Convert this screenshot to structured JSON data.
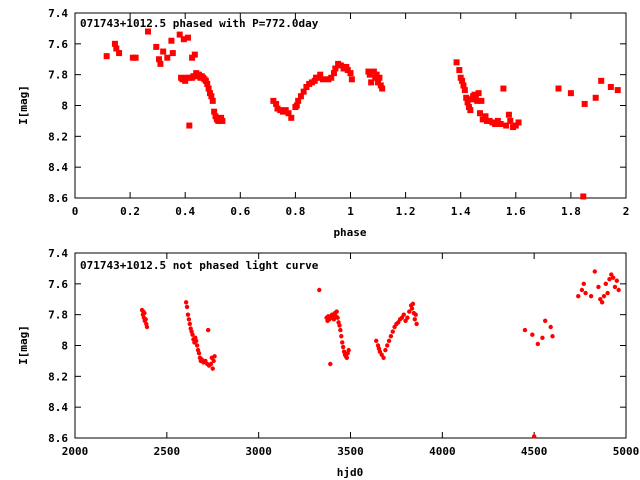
{
  "chart_data": [
    {
      "type": "scatter",
      "title": "071743+1012.5 phased with P=772.0day",
      "xlabel": "phase",
      "ylabel": "I[mag]",
      "xlim": [
        0,
        2
      ],
      "ylim": [
        8.6,
        7.4
      ],
      "y_inverted": true,
      "x_ticks": [
        "0",
        "0.2",
        "0.4",
        "0.6",
        "0.8",
        "1",
        "1.2",
        "1.4",
        "1.6",
        "1.8",
        "2"
      ],
      "y_ticks": [
        "7.4",
        "7.6",
        "7.8",
        "8",
        "8.2",
        "8.4",
        "8.6"
      ],
      "grid": false,
      "marker_color": "#ff0000",
      "series": [
        {
          "values": [
            [
              0.115,
              7.68
            ],
            [
              0.145,
              7.6
            ],
            [
              0.15,
              7.63
            ],
            [
              0.16,
              7.66
            ],
            [
              0.21,
              7.69
            ],
            [
              0.22,
              7.69
            ],
            [
              0.265,
              7.52
            ],
            [
              0.295,
              7.62
            ],
            [
              0.305,
              7.7
            ],
            [
              0.31,
              7.73
            ],
            [
              0.32,
              7.65
            ],
            [
              0.335,
              7.69
            ],
            [
              0.35,
              7.58
            ],
            [
              0.355,
              7.66
            ],
            [
              0.38,
              7.54
            ],
            [
              0.385,
              7.82
            ],
            [
              0.39,
              7.83
            ],
            [
              0.395,
              7.57
            ],
            [
              0.4,
              7.84
            ],
            [
              0.405,
              7.82
            ],
            [
              0.41,
              7.56
            ],
            [
              0.415,
              7.82
            ],
            [
              0.415,
              8.13
            ],
            [
              0.425,
              7.82
            ],
            [
              0.425,
              7.69
            ],
            [
              0.43,
              7.81
            ],
            [
              0.435,
              7.67
            ],
            [
              0.44,
              7.79
            ],
            [
              0.445,
              7.81
            ],
            [
              0.45,
              7.8
            ],
            [
              0.455,
              7.82
            ],
            [
              0.46,
              7.81
            ],
            [
              0.465,
              7.82
            ],
            [
              0.47,
              7.83
            ],
            [
              0.475,
              7.84
            ],
            [
              0.48,
              7.86
            ],
            [
              0.485,
              7.89
            ],
            [
              0.49,
              7.92
            ],
            [
              0.495,
              7.94
            ],
            [
              0.5,
              7.97
            ],
            [
              0.505,
              8.04
            ],
            [
              0.51,
              8.07
            ],
            [
              0.515,
              8.09
            ],
            [
              0.52,
              8.1
            ],
            [
              0.525,
              8.1
            ],
            [
              0.53,
              8.08
            ],
            [
              0.535,
              8.1
            ],
            [
              0.72,
              7.97
            ],
            [
              0.73,
              7.99
            ],
            [
              0.735,
              8.02
            ],
            [
              0.745,
              8.03
            ],
            [
              0.755,
              8.04
            ],
            [
              0.765,
              8.03
            ],
            [
              0.775,
              8.05
            ],
            [
              0.785,
              8.08
            ],
            [
              0.8,
              8.01
            ],
            [
              0.805,
              8.0
            ],
            [
              0.81,
              7.97
            ],
            [
              0.82,
              7.94
            ],
            [
              0.83,
              7.91
            ],
            [
              0.84,
              7.88
            ],
            [
              0.85,
              7.86
            ],
            [
              0.86,
              7.85
            ],
            [
              0.87,
              7.84
            ],
            [
              0.875,
              7.82
            ],
            [
              0.88,
              7.82
            ],
            [
              0.89,
              7.8
            ],
            [
              0.9,
              7.83
            ],
            [
              0.92,
              7.83
            ],
            [
              0.93,
              7.82
            ],
            [
              0.94,
              7.79
            ],
            [
              0.945,
              7.76
            ],
            [
              0.955,
              7.73
            ],
            [
              0.965,
              7.74
            ],
            [
              0.975,
              7.76
            ],
            [
              0.985,
              7.75
            ],
            [
              0.99,
              7.77
            ],
            [
              1.0,
              7.79
            ],
            [
              1.005,
              7.83
            ],
            [
              1.065,
              7.78
            ],
            [
              1.07,
              7.8
            ],
            [
              1.075,
              7.85
            ],
            [
              1.085,
              7.78
            ],
            [
              1.09,
              7.82
            ],
            [
              1.095,
              7.8
            ],
            [
              1.1,
              7.85
            ],
            [
              1.105,
              7.82
            ],
            [
              1.11,
              7.87
            ],
            [
              1.115,
              7.89
            ],
            [
              1.385,
              7.72
            ],
            [
              1.395,
              7.77
            ],
            [
              1.4,
              7.82
            ],
            [
              1.405,
              7.84
            ],
            [
              1.41,
              7.87
            ],
            [
              1.415,
              7.9
            ],
            [
              1.42,
              7.95
            ],
            [
              1.425,
              7.98
            ],
            [
              1.43,
              8.01
            ],
            [
              1.435,
              8.03
            ],
            [
              1.44,
              7.96
            ],
            [
              1.445,
              7.94
            ],
            [
              1.45,
              7.93
            ],
            [
              1.455,
              7.95
            ],
            [
              1.46,
              7.97
            ],
            [
              1.465,
              7.92
            ],
            [
              1.47,
              8.05
            ],
            [
              1.475,
              7.97
            ],
            [
              1.48,
              8.09
            ],
            [
              1.49,
              8.07
            ],
            [
              1.495,
              8.1
            ],
            [
              1.505,
              8.1
            ],
            [
              1.515,
              8.11
            ],
            [
              1.525,
              8.12
            ],
            [
              1.535,
              8.1
            ],
            [
              1.545,
              8.12
            ],
            [
              1.555,
              7.89
            ],
            [
              1.565,
              8.13
            ],
            [
              1.575,
              8.06
            ],
            [
              1.58,
              8.1
            ],
            [
              1.59,
              8.14
            ],
            [
              1.6,
              8.13
            ],
            [
              1.61,
              8.11
            ],
            [
              1.755,
              7.89
            ],
            [
              1.8,
              7.92
            ],
            [
              1.845,
              8.59
            ],
            [
              1.85,
              7.99
            ],
            [
              1.89,
              7.95
            ],
            [
              1.91,
              7.84
            ],
            [
              1.945,
              7.88
            ],
            [
              1.97,
              7.9
            ]
          ]
        }
      ]
    },
    {
      "type": "scatter",
      "title": "071743+1012.5 not phased light curve",
      "xlabel": "hjd0",
      "ylabel": "I[mag]",
      "xlim": [
        2000,
        5000
      ],
      "ylim": [
        8.6,
        7.4
      ],
      "y_inverted": true,
      "x_ticks": [
        "2000",
        "2500",
        "3000",
        "3500",
        "4000",
        "4500",
        "5000"
      ],
      "y_ticks": [
        "7.4",
        "7.6",
        "7.8",
        "8",
        "8.2",
        "8.4",
        "8.6"
      ],
      "grid": false,
      "marker_color": "#ff0000",
      "series": [
        {
          "values": [
            [
              2365,
              7.77
            ],
            [
              2370,
              7.8
            ],
            [
              2372,
              7.78
            ],
            [
              2375,
              7.82
            ],
            [
              2378,
              7.79
            ],
            [
              2380,
              7.84
            ],
            [
              2385,
              7.83
            ],
            [
              2388,
              7.86
            ],
            [
              2392,
              7.88
            ],
            [
              2605,
              7.72
            ],
            [
              2610,
              7.75
            ],
            [
              2615,
              7.8
            ],
            [
              2620,
              7.83
            ],
            [
              2625,
              7.86
            ],
            [
              2630,
              7.89
            ],
            [
              2635,
              7.91
            ],
            [
              2640,
              7.93
            ],
            [
              2645,
              7.96
            ],
            [
              2650,
              7.98
            ],
            [
              2655,
              7.95
            ],
            [
              2660,
              7.97
            ],
            [
              2665,
              8.0
            ],
            [
              2670,
              8.03
            ],
            [
              2675,
              8.05
            ],
            [
              2680,
              8.08
            ],
            [
              2685,
              8.1
            ],
            [
              2690,
              8.09
            ],
            [
              2700,
              8.11
            ],
            [
              2710,
              8.1
            ],
            [
              2720,
              8.12
            ],
            [
              2725,
              7.9
            ],
            [
              2730,
              8.13
            ],
            [
              2740,
              8.12
            ],
            [
              2745,
              8.08
            ],
            [
              2750,
              8.15
            ],
            [
              2755,
              8.1
            ],
            [
              2760,
              8.07
            ],
            [
              3330,
              7.64
            ],
            [
              3370,
              7.82
            ],
            [
              3375,
              7.84
            ],
            [
              3380,
              7.81
            ],
            [
              3385,
              7.83
            ],
            [
              3390,
              8.12
            ],
            [
              3395,
              7.82
            ],
            [
              3400,
              7.8
            ],
            [
              3405,
              7.82
            ],
            [
              3410,
              7.83
            ],
            [
              3415,
              7.79
            ],
            [
              3420,
              7.81
            ],
            [
              3425,
              7.78
            ],
            [
              3430,
              7.82
            ],
            [
              3435,
              7.85
            ],
            [
              3440,
              7.87
            ],
            [
              3445,
              7.9
            ],
            [
              3450,
              7.94
            ],
            [
              3455,
              7.98
            ],
            [
              3460,
              8.01
            ],
            [
              3465,
              8.04
            ],
            [
              3470,
              8.06
            ],
            [
              3475,
              8.07
            ],
            [
              3480,
              8.08
            ],
            [
              3485,
              8.05
            ],
            [
              3490,
              8.03
            ],
            [
              3640,
              7.97
            ],
            [
              3650,
              8.0
            ],
            [
              3655,
              8.02
            ],
            [
              3660,
              8.04
            ],
            [
              3670,
              8.06
            ],
            [
              3680,
              8.08
            ],
            [
              3690,
              8.03
            ],
            [
              3700,
              8.0
            ],
            [
              3710,
              7.97
            ],
            [
              3720,
              7.94
            ],
            [
              3730,
              7.91
            ],
            [
              3740,
              7.88
            ],
            [
              3750,
              7.86
            ],
            [
              3760,
              7.85
            ],
            [
              3770,
              7.83
            ],
            [
              3780,
              7.82
            ],
            [
              3790,
              7.8
            ],
            [
              3800,
              7.84
            ],
            [
              3810,
              7.82
            ],
            [
              3820,
              7.78
            ],
            [
              3830,
              7.74
            ],
            [
              3835,
              7.76
            ],
            [
              3840,
              7.73
            ],
            [
              3845,
              7.79
            ],
            [
              3850,
              7.83
            ],
            [
              3855,
              7.8
            ],
            [
              3860,
              7.86
            ],
            [
              4450,
              7.9
            ],
            [
              4490,
              7.93
            ],
            [
              4500,
              8.59
            ],
            [
              4520,
              7.99
            ],
            [
              4545,
              7.95
            ],
            [
              4560,
              7.84
            ],
            [
              4590,
              7.88
            ],
            [
              4600,
              7.94
            ],
            [
              4740,
              7.68
            ],
            [
              4760,
              7.64
            ],
            [
              4770,
              7.6
            ],
            [
              4780,
              7.66
            ],
            [
              4810,
              7.68
            ],
            [
              4830,
              7.52
            ],
            [
              4850,
              7.62
            ],
            [
              4860,
              7.7
            ],
            [
              4870,
              7.72
            ],
            [
              4880,
              7.68
            ],
            [
              4890,
              7.6
            ],
            [
              4900,
              7.66
            ],
            [
              4910,
              7.57
            ],
            [
              4920,
              7.54
            ],
            [
              4930,
              7.56
            ],
            [
              4940,
              7.62
            ],
            [
              4950,
              7.58
            ],
            [
              4960,
              7.64
            ]
          ]
        }
      ]
    }
  ]
}
